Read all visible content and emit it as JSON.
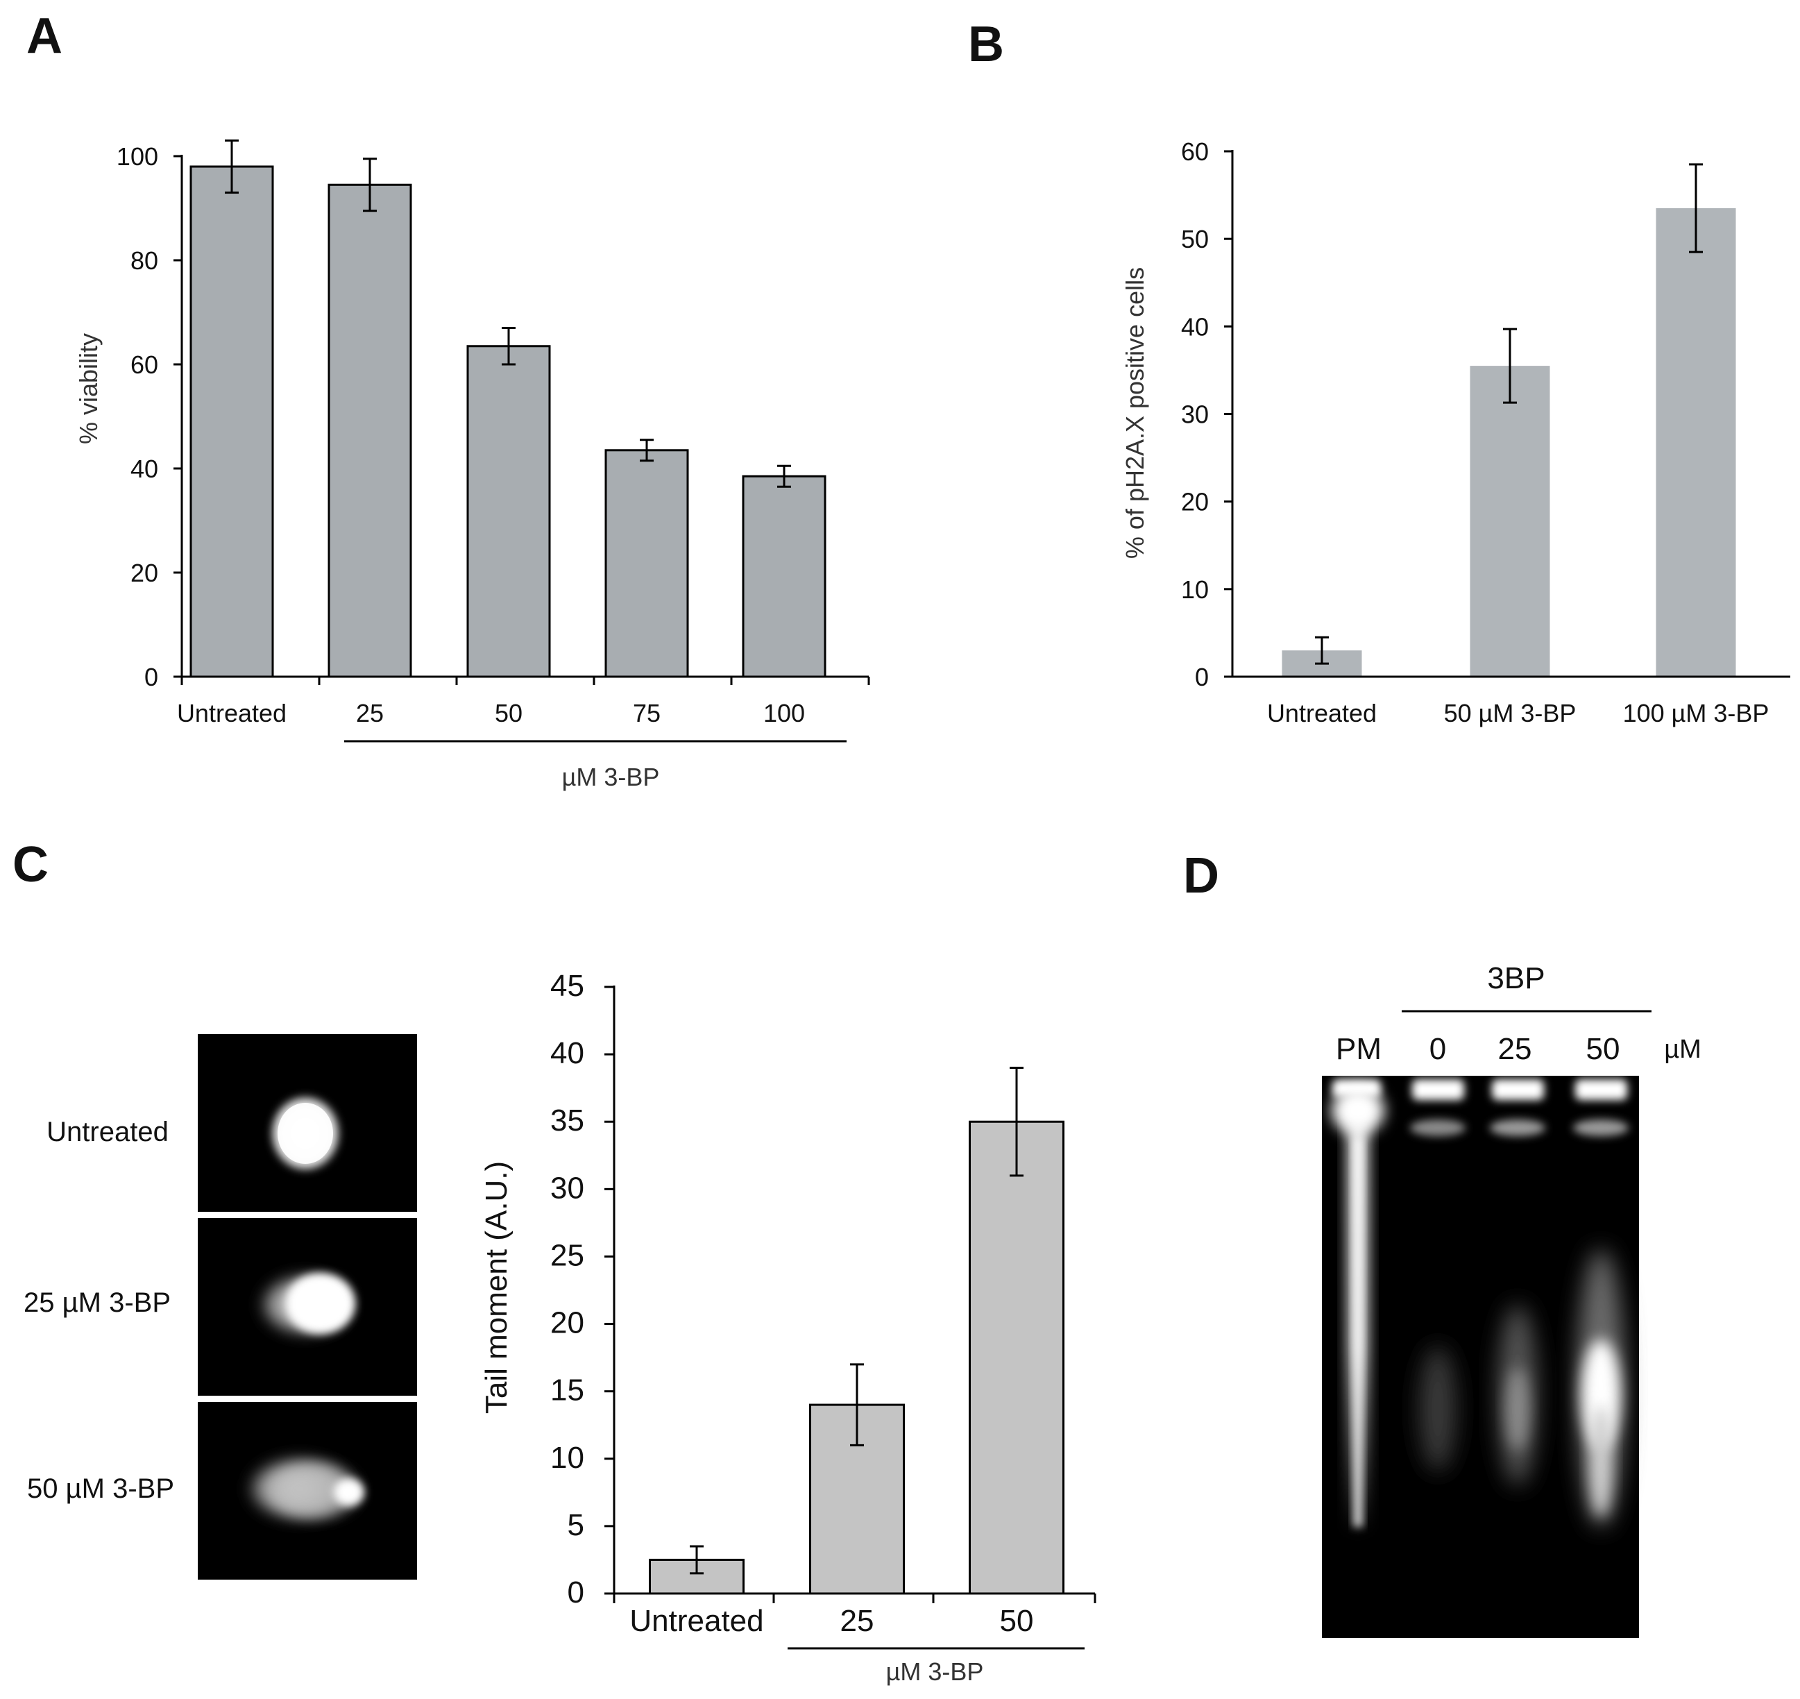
{
  "panels": {
    "a": {
      "letter": "A"
    },
    "b": {
      "letter": "B"
    },
    "c": {
      "letter": "C"
    },
    "d": {
      "letter": "D"
    }
  },
  "chart_data": [
    {
      "panel": "A",
      "type": "bar",
      "categories": [
        "Untreated",
        "25",
        "50",
        "75",
        "100"
      ],
      "values": [
        98,
        94.5,
        63.5,
        43.5,
        38.5
      ],
      "errors": [
        5,
        5,
        3.5,
        2,
        2
      ],
      "group_label": "µM 3-BP",
      "ylabel": "% viability",
      "ylim": [
        0,
        100
      ],
      "yticks": [
        0,
        20,
        40,
        60,
        80,
        100
      ],
      "bar_color": "#a8adb1",
      "bar_outline": "#000000",
      "grid": false
    },
    {
      "panel": "B",
      "type": "bar",
      "categories": [
        "Untreated",
        "50 µM 3-BP",
        "100 µM 3-BP"
      ],
      "values": [
        3,
        35.5,
        53.5
      ],
      "errors": [
        1.5,
        4.2,
        5
      ],
      "ylabel": "% of pH2A.X positive cells",
      "ylim": [
        0,
        60
      ],
      "yticks": [
        0,
        10,
        20,
        30,
        40,
        50,
        60
      ],
      "bar_color": "#b0b5b9",
      "bar_outline": "none",
      "grid": false
    },
    {
      "panel": "C",
      "type": "bar",
      "categories": [
        "Untreated",
        "25",
        "50"
      ],
      "values": [
        2.5,
        14,
        35
      ],
      "errors": [
        1,
        3,
        4
      ],
      "group_label": "µM 3-BP",
      "ylabel": "Tail moment  (A.U.)",
      "ylim": [
        0,
        45
      ],
      "yticks": [
        0,
        5,
        10,
        15,
        20,
        25,
        30,
        35,
        40,
        45
      ],
      "bar_color": "#c4c4c4",
      "bar_outline": "#000000",
      "grid": false
    }
  ],
  "comet_assay": {
    "labels": [
      "Untreated",
      "25 µM 3-BP",
      "50 µM 3-BP"
    ]
  },
  "gel": {
    "treatment_label": "3BP",
    "lane_labels": [
      "PM",
      "0",
      "25",
      "50"
    ],
    "unit_label": "µM"
  }
}
